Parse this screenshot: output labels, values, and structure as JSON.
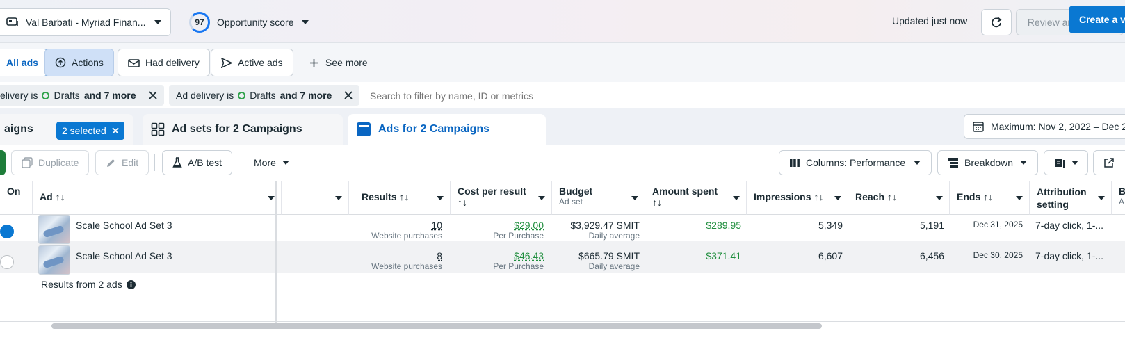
{
  "header": {
    "account_name": "Val Barbati - Myriad Finan...",
    "opportunity_score": "97",
    "opportunity_label": "Opportunity score",
    "updated_text": "Updated just now",
    "review_label": "Review and publish"
  },
  "quick_filters": {
    "all_ads": "All ads",
    "actions": "Actions",
    "had_delivery": "Had delivery",
    "active_ads": "Active ads",
    "see_more": "See more",
    "create_label": "Create a v"
  },
  "filters": [
    {
      "prefix": "elivery is",
      "value": "Drafts",
      "more": "and 7 more"
    },
    {
      "prefix": "Ad delivery is",
      "value": "Drafts",
      "more": "and 7 more"
    }
  ],
  "search": {
    "placeholder": "Search to filter by name, ID or metrics"
  },
  "tabs": {
    "campaigns": "aigns",
    "selected_pill": "2 selected",
    "ad_sets": "Ad sets for 2 Campaigns",
    "ads": "Ads for 2 Campaigns"
  },
  "date_range": "Maximum: Nov 2, 2022 – Dec 2",
  "toolbar": {
    "duplicate": "Duplicate",
    "edit": "Edit",
    "ab_test": "A/B test",
    "more": "More",
    "columns": "Columns: Performance",
    "breakdown": "Breakdown"
  },
  "columns": {
    "on": "On",
    "ad": "Ad",
    "results": "Results",
    "cost_per_result": "Cost per result",
    "budget": "Budget",
    "budget_sub": "Ad set",
    "amount_spent": "Amount spent",
    "impressions": "Impressions",
    "reach": "Reach",
    "ends": "Ends",
    "attribution": "Attribution setting",
    "next_col": "B",
    "next_col_sub": "A"
  },
  "rows": [
    {
      "on": true,
      "ad_name": "Scale School Ad Set 3",
      "results": "10",
      "results_sub": "Website purchases",
      "cost": "$29.00",
      "cost_sub": "Per Purchase",
      "budget": "$3,929.47 SMIT",
      "budget_sub": "Daily average",
      "spent": "$289.95",
      "impressions": "5,349",
      "reach": "5,191",
      "ends": "Dec 31, 2025",
      "attribution": "7-day click, 1-..."
    },
    {
      "on": false,
      "ad_name": "Scale School Ad Set 3",
      "results": "8",
      "results_sub": "Website purchases",
      "cost": "$46.43",
      "cost_sub": "Per Purchase",
      "budget": "$665.79 SMIT",
      "budget_sub": "Daily average",
      "spent": "$371.41",
      "impressions": "6,607",
      "reach": "6,456",
      "ends": "Dec 30, 2025",
      "attribution": "7-day click, 1-..."
    }
  ],
  "summary": {
    "label": "Results from 2 ads"
  },
  "colors": {
    "accent": "#0a78d2",
    "green": "#1f8e3d",
    "active_chip_bg": "#cfe0f7"
  }
}
